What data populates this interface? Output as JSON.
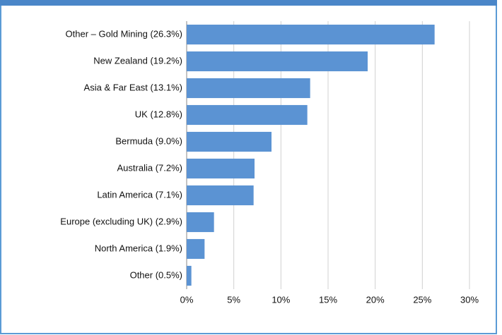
{
  "chart_data": {
    "type": "bar",
    "orientation": "horizontal",
    "categories": [
      "Other – Gold Mining (26.3%)",
      "New Zealand (19.2%)",
      "Asia & Far East (13.1%)",
      "UK (12.8%)",
      "Bermuda (9.0%)",
      "Australia (7.2%)",
      "Latin America (7.1%)",
      "Europe (excluding UK) (2.9%)",
      "North America (1.9%)",
      "Other (0.5%)"
    ],
    "values": [
      26.3,
      19.2,
      13.1,
      12.8,
      9.0,
      7.2,
      7.1,
      2.9,
      1.9,
      0.5
    ],
    "color": "#5b93d3",
    "xlim": [
      0,
      30
    ],
    "xticks": [
      {
        "value": 0,
        "label": "0%"
      },
      {
        "value": 5,
        "label": "5%"
      },
      {
        "value": 10,
        "label": "10%"
      },
      {
        "value": 15,
        "label": "15%"
      },
      {
        "value": 20,
        "label": "20%"
      },
      {
        "value": 25,
        "label": "25%"
      },
      {
        "value": 30,
        "label": "30%"
      }
    ],
    "grid": true
  }
}
